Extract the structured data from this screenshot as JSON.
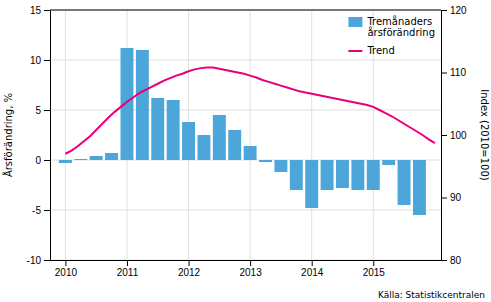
{
  "chart_data": {
    "type": "bar",
    "ylabel": "Årsförändring, %",
    "y2label": "Index (2010=100)",
    "annotation": "Källa: Statistikcentralen",
    "xlim": [
      2009.75,
      2016.1
    ],
    "xticks": [
      2010,
      2011,
      2012,
      2013,
      2014,
      2015
    ],
    "ylim": [
      -10,
      15
    ],
    "yticks": [
      -10,
      -5,
      0,
      5,
      10,
      15
    ],
    "y2lim": [
      80,
      120
    ],
    "y2ticks": [
      80,
      90,
      100,
      110,
      120
    ],
    "grid": true,
    "legend": "upper right",
    "series": [
      {
        "name": "Tremånaders\nårsförändring",
        "type": "bar",
        "color": "#4da6d9",
        "x": [
          2010.0,
          2010.25,
          2010.5,
          2010.75,
          2011.0,
          2011.25,
          2011.5,
          2011.75,
          2012.0,
          2012.25,
          2012.5,
          2012.75,
          2013.0,
          2013.25,
          2013.5,
          2013.75,
          2014.0,
          2014.25,
          2014.5,
          2014.75,
          2015.0,
          2015.25,
          2015.5,
          2015.75
        ],
        "values": [
          -0.3,
          0.1,
          0.4,
          0.7,
          11.2,
          11.0,
          6.2,
          6.0,
          3.8,
          2.5,
          4.5,
          3.0,
          1.4,
          -0.2,
          -1.2,
          -3.0,
          -4.8,
          -3.0,
          -2.8,
          -3.0,
          -3.0,
          -0.5,
          -4.5,
          -5.5
        ]
      },
      {
        "name": "Trend",
        "type": "line",
        "axis": "y2",
        "color": "#e8007a",
        "x": [
          2010.0,
          2010.1,
          2010.2,
          2010.3,
          2010.4,
          2010.5,
          2010.6,
          2010.7,
          2010.8,
          2010.9,
          2011.0,
          2011.1,
          2011.2,
          2011.3,
          2011.4,
          2011.5,
          2011.6,
          2011.7,
          2011.8,
          2011.9,
          2012.0,
          2012.1,
          2012.2,
          2012.3,
          2012.4,
          2012.5,
          2012.6,
          2012.7,
          2012.8,
          2012.9,
          2013.0,
          2013.1,
          2013.2,
          2013.3,
          2013.4,
          2013.5,
          2013.6,
          2013.7,
          2013.8,
          2013.9,
          2014.0,
          2014.1,
          2014.2,
          2014.3,
          2014.4,
          2014.5,
          2014.6,
          2014.7,
          2014.8,
          2014.9,
          2015.0,
          2015.1,
          2015.2,
          2015.3,
          2015.4,
          2015.5,
          2015.6,
          2015.7,
          2015.8,
          2015.9,
          2016.0
        ],
        "values": [
          97.0,
          97.5,
          98.2,
          99.0,
          99.8,
          100.8,
          101.8,
          102.8,
          103.7,
          104.5,
          105.3,
          106.0,
          106.7,
          107.2,
          107.7,
          108.2,
          108.7,
          109.1,
          109.5,
          109.8,
          110.2,
          110.5,
          110.7,
          110.8,
          110.8,
          110.6,
          110.4,
          110.2,
          110.0,
          109.8,
          109.5,
          109.2,
          108.8,
          108.5,
          108.2,
          107.9,
          107.6,
          107.3,
          107.0,
          106.8,
          106.6,
          106.4,
          106.2,
          106.0,
          105.8,
          105.6,
          105.4,
          105.2,
          105.0,
          104.8,
          104.5,
          104.0,
          103.5,
          103.0,
          102.4,
          101.8,
          101.2,
          100.6,
          100.0,
          99.3,
          98.7
        ]
      }
    ]
  }
}
